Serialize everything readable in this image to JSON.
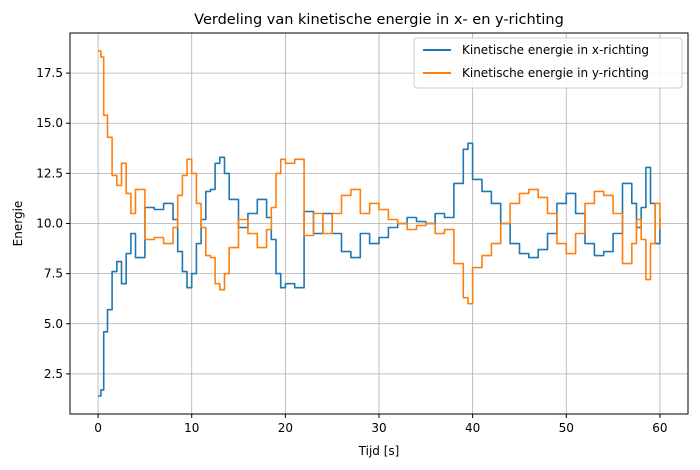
{
  "chart_data": {
    "type": "line",
    "title": "Verdeling van kinetische energie in x- en y-richting",
    "xlabel": "Tijd [s]",
    "ylabel": "Energie",
    "xlim": [
      -3,
      63
    ],
    "ylim": [
      0.5,
      19.5
    ],
    "xticks": [
      0,
      10,
      20,
      30,
      40,
      50,
      60
    ],
    "yticks": [
      2.5,
      5.0,
      7.5,
      10.0,
      12.5,
      15.0,
      17.5
    ],
    "ytick_labels": [
      "2.5",
      "5.0",
      "7.5",
      "10.0",
      "12.5",
      "15.0",
      "17.5"
    ],
    "grid": true,
    "legend_position": "top-right",
    "series": [
      {
        "name": "Kinetische energie in x-richting",
        "color": "#1f77b4",
        "x": [
          0,
          0.3,
          0.6,
          1.0,
          1.5,
          2.0,
          2.5,
          3.0,
          3.5,
          4.0,
          5.0,
          6.0,
          7.0,
          8.0,
          8.5,
          9.0,
          9.5,
          10.0,
          10.5,
          11.0,
          11.5,
          12.0,
          12.5,
          13.0,
          13.5,
          14.0,
          15.0,
          16.0,
          17.0,
          18.0,
          18.5,
          19.0,
          19.5,
          20.0,
          21.0,
          22.0,
          23.0,
          24.0,
          25.0,
          26.0,
          27.0,
          28.0,
          29.0,
          30.0,
          31.0,
          32.0,
          33.0,
          34.0,
          35.0,
          36.0,
          37.0,
          38.0,
          39.0,
          39.5,
          40.0,
          41.0,
          42.0,
          43.0,
          44.0,
          45.0,
          46.0,
          47.0,
          48.0,
          49.0,
          50.0,
          51.0,
          52.0,
          53.0,
          54.0,
          55.0,
          56.0,
          57.0,
          57.5,
          58.0,
          58.5,
          59.0,
          59.5,
          60.0
        ],
        "values": [
          1.4,
          1.7,
          4.6,
          5.7,
          7.6,
          8.1,
          7.0,
          8.5,
          9.5,
          8.3,
          10.8,
          10.7,
          11.0,
          10.2,
          8.6,
          7.6,
          6.8,
          7.5,
          9.0,
          10.2,
          11.6,
          11.7,
          13.0,
          13.3,
          12.5,
          11.2,
          9.8,
          10.5,
          11.2,
          10.3,
          9.2,
          7.5,
          6.8,
          7.0,
          6.8,
          10.6,
          9.5,
          10.5,
          9.5,
          8.6,
          8.3,
          9.5,
          9.0,
          9.3,
          9.8,
          10.0,
          10.3,
          10.1,
          10.0,
          10.5,
          10.3,
          12.0,
          13.7,
          14.0,
          12.2,
          11.6,
          11.0,
          10.0,
          9.0,
          8.5,
          8.3,
          8.7,
          9.5,
          11.0,
          11.5,
          10.5,
          9.0,
          8.4,
          8.6,
          9.5,
          12.0,
          11.0,
          9.8,
          10.8,
          12.8,
          11.0,
          9.0,
          10.3
        ]
      },
      {
        "name": "Kinetische energie in y-richting",
        "color": "#ff7f0e",
        "x": [
          0,
          0.3,
          0.6,
          1.0,
          1.5,
          2.0,
          2.5,
          3.0,
          3.5,
          4.0,
          5.0,
          6.0,
          7.0,
          8.0,
          8.5,
          9.0,
          9.5,
          10.0,
          10.5,
          11.0,
          11.5,
          12.0,
          12.5,
          13.0,
          13.5,
          14.0,
          15.0,
          16.0,
          17.0,
          18.0,
          18.5,
          19.0,
          19.5,
          20.0,
          21.0,
          22.0,
          23.0,
          24.0,
          25.0,
          26.0,
          27.0,
          28.0,
          29.0,
          30.0,
          31.0,
          32.0,
          33.0,
          34.0,
          35.0,
          36.0,
          37.0,
          38.0,
          39.0,
          39.5,
          40.0,
          41.0,
          42.0,
          43.0,
          44.0,
          45.0,
          46.0,
          47.0,
          48.0,
          49.0,
          50.0,
          51.0,
          52.0,
          53.0,
          54.0,
          55.0,
          56.0,
          57.0,
          57.5,
          58.0,
          58.5,
          59.0,
          59.5,
          60.0
        ],
        "values": [
          18.6,
          18.3,
          15.4,
          14.3,
          12.4,
          11.9,
          13.0,
          11.5,
          10.5,
          11.7,
          9.2,
          9.3,
          9.0,
          9.8,
          11.4,
          12.4,
          13.2,
          12.5,
          11.0,
          9.8,
          8.4,
          8.3,
          7.0,
          6.7,
          7.5,
          8.8,
          10.2,
          9.5,
          8.8,
          9.7,
          10.8,
          12.5,
          13.2,
          13.0,
          13.2,
          9.4,
          10.5,
          9.5,
          10.5,
          11.4,
          11.7,
          10.5,
          11.0,
          10.7,
          10.2,
          10.0,
          9.7,
          9.9,
          10.0,
          9.5,
          9.7,
          8.0,
          6.3,
          6.0,
          7.8,
          8.4,
          9.0,
          10.0,
          11.0,
          11.5,
          11.7,
          11.3,
          10.5,
          9.0,
          8.5,
          9.5,
          11.0,
          11.6,
          11.4,
          10.5,
          8.0,
          9.0,
          10.2,
          9.2,
          7.2,
          9.0,
          11.0,
          9.7
        ]
      }
    ]
  }
}
